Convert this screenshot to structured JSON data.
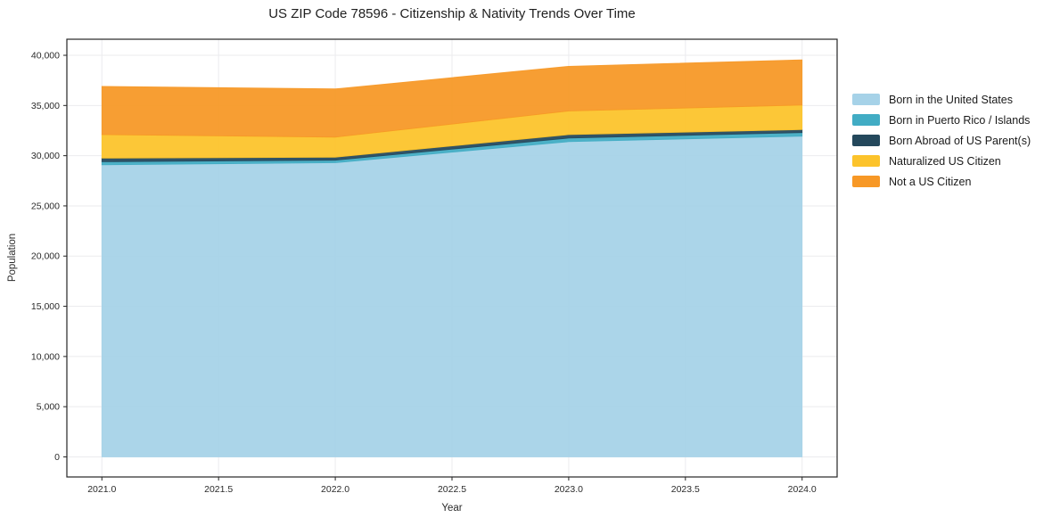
{
  "chart_data": {
    "type": "area",
    "stacked": true,
    "title": "US ZIP Code 78596 - Citizenship & Nativity Trends Over Time",
    "xlabel": "Year",
    "ylabel": "Population",
    "x": [
      2021,
      2022,
      2023,
      2024
    ],
    "series": [
      {
        "name": "Born in the United States",
        "color": "#a6d2e8",
        "values": [
          29100,
          29300,
          31400,
          31950
        ]
      },
      {
        "name": "Born in Puerto Rico / Islands",
        "color": "#41acc4",
        "values": [
          300,
          250,
          350,
          350
        ]
      },
      {
        "name": "Born Abroad of US Parent(s)",
        "color": "#24485c",
        "values": [
          350,
          300,
          350,
          300
        ]
      },
      {
        "name": "Naturalized US Citizen",
        "color": "#fcc32b",
        "values": [
          2350,
          2000,
          2350,
          2450
        ]
      },
      {
        "name": "Not a US Citizen",
        "color": "#f79826",
        "values": [
          4800,
          4800,
          4450,
          4500
        ]
      }
    ],
    "totals": [
      36900,
      36650,
      38900,
      39550
    ],
    "x_ticks": [
      2021.0,
      2021.5,
      2022.0,
      2022.5,
      2023.0,
      2023.5,
      2024.0
    ],
    "x_tick_labels": [
      "2021.0",
      "2021.5",
      "2022.0",
      "2022.5",
      "2023.0",
      "2023.5",
      "2024.0"
    ],
    "y_ticks": [
      0,
      5000,
      10000,
      15000,
      20000,
      25000,
      30000,
      35000,
      40000
    ],
    "y_tick_labels": [
      "0",
      "5,000",
      "10,000",
      "15,000",
      "20,000",
      "25,000",
      "30,000",
      "35,000",
      "40,000"
    ],
    "xlim": [
      2020.85,
      2024.15
    ],
    "ylim": [
      -2000,
      41600
    ],
    "grid": true,
    "grid_color": "#ebebee",
    "spine_color": "#262626",
    "legend_position": "right-outside"
  }
}
